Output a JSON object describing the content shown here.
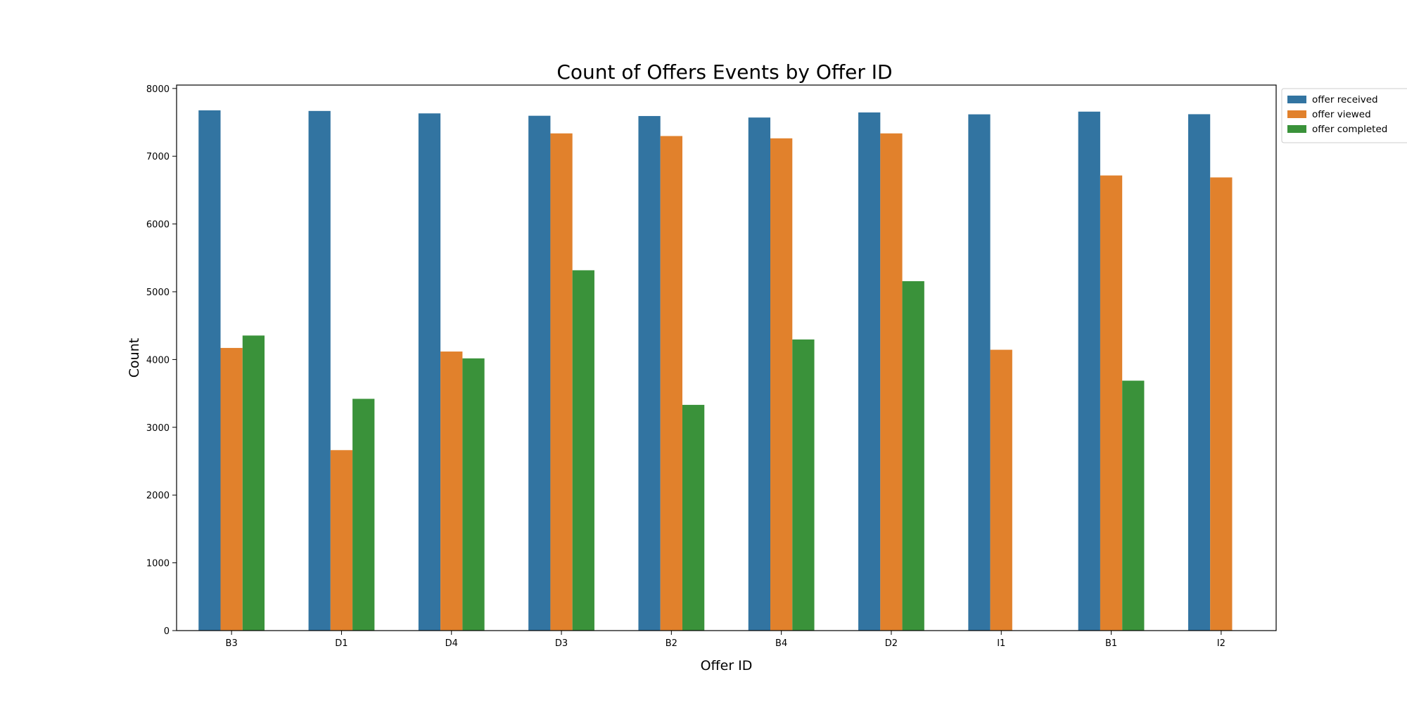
{
  "chart_data": {
    "type": "bar",
    "title": "Count of Offers Events by Offer ID",
    "xlabel": "Offer ID",
    "ylabel": "Count",
    "ylim": [
      0,
      8050
    ],
    "yticks": [
      0,
      1000,
      2000,
      3000,
      4000,
      5000,
      6000,
      7000,
      8000
    ],
    "grid": false,
    "legend_position": "outside-top-right",
    "categories": [
      "B3",
      "D1",
      "D4",
      "D3",
      "B2",
      "B4",
      "D2",
      "I1",
      "B1",
      "I2"
    ],
    "series": [
      {
        "name": "offer received",
        "color": "#3274a1",
        "values": [
          7677,
          7668,
          7632,
          7597,
          7593,
          7571,
          7646,
          7618,
          7658,
          7620
        ]
      },
      {
        "name": "offer viewed",
        "color": "#e1812c",
        "values": [
          4171,
          2663,
          4118,
          7337,
          7298,
          7264,
          7337,
          4144,
          6716,
          6687
        ]
      },
      {
        "name": "offer completed",
        "color": "#3a923a",
        "values": [
          4354,
          3420,
          4017,
          5317,
          3331,
          4296,
          5156,
          null,
          3688,
          null
        ]
      }
    ]
  }
}
